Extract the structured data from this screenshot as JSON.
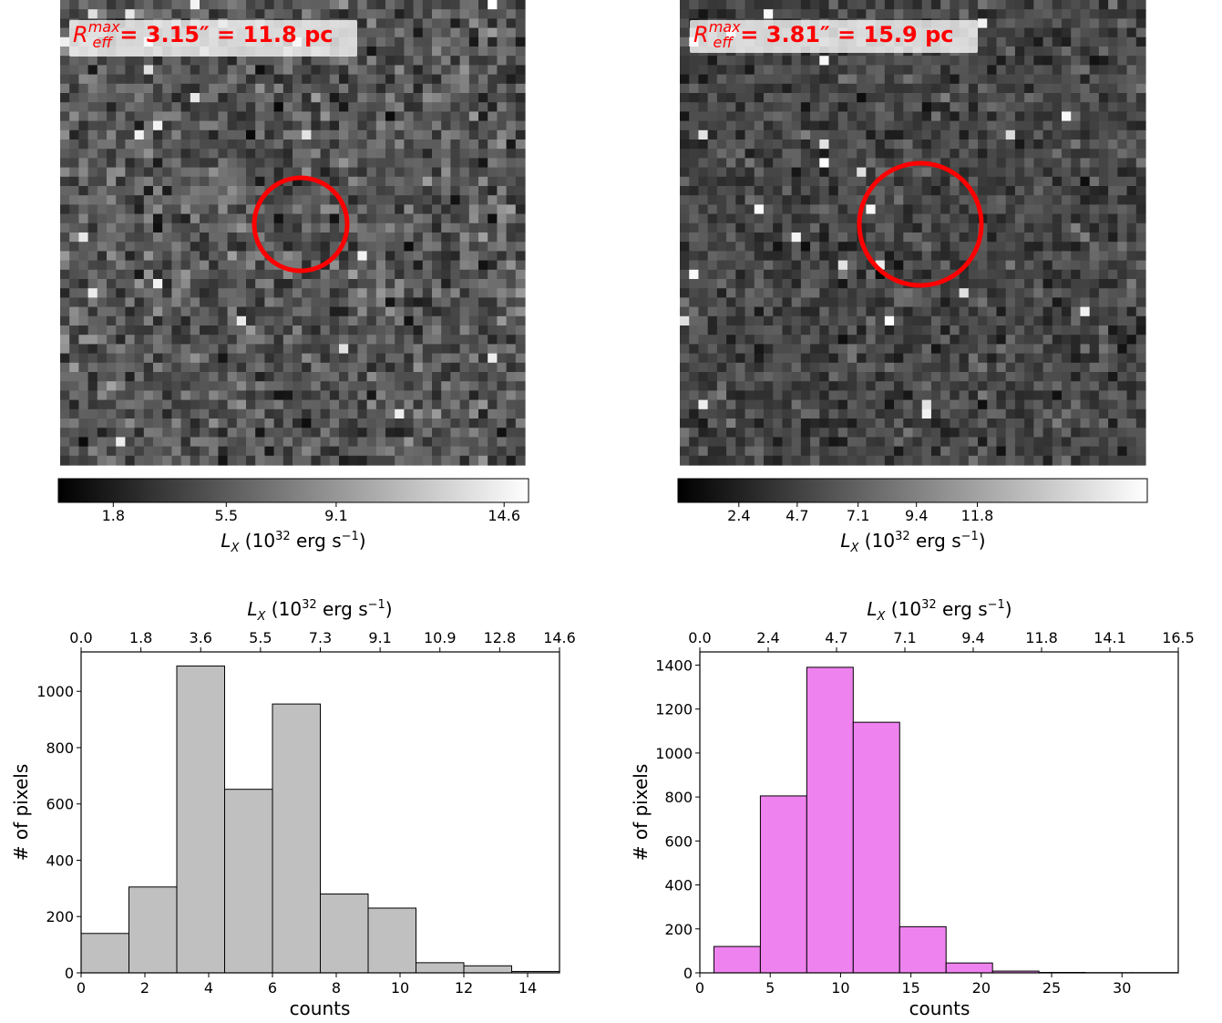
{
  "chart_data": [
    {
      "type": "heatmap",
      "panel": "top-left",
      "annotation": {
        "symbol": "R",
        "superscript": "max",
        "subscript": "eff",
        "text": " = 3.15″ = 11.8 pc"
      },
      "circle_color": "#ff0000",
      "colorbar": {
        "ticks": [
          "1.8",
          "5.5",
          "9.1",
          "14.6"
        ],
        "tick_values": [
          1.8,
          5.5,
          9.1,
          14.6
        ],
        "range": [
          0,
          15.4
        ],
        "label": {
          "base": "L",
          "sub": "X",
          "pre": " (10",
          "sup": "32",
          "mid": " erg s",
          "sup2": "−1",
          "post": ")"
        }
      }
    },
    {
      "type": "heatmap",
      "panel": "top-right",
      "annotation": {
        "symbol": "R",
        "superscript": "max",
        "subscript": "eff",
        "text": " = 3.81″ = 15.9 pc"
      },
      "circle_color": "#ff0000",
      "colorbar": {
        "ticks": [
          "2.4",
          "4.7",
          "7.1",
          "9.4",
          "11.8"
        ],
        "tick_values": [
          2.4,
          4.7,
          7.1,
          9.4,
          11.8
        ],
        "range": [
          0,
          18.5
        ],
        "label": {
          "base": "L",
          "sub": "X",
          "pre": " (10",
          "sup": "32",
          "mid": " erg s",
          "sup2": "−1",
          "post": ")"
        }
      }
    },
    {
      "type": "bar",
      "panel": "bottom-left",
      "fill": "#c0c0c0",
      "bin_edges": [
        0,
        1.5,
        3,
        4.5,
        6,
        7.5,
        9,
        10.5,
        12,
        13.5,
        15
      ],
      "values": [
        140,
        305,
        1090,
        652,
        955,
        280,
        230,
        36,
        25,
        5
      ],
      "xlabel": "counts",
      "ylabel": "# of pixels",
      "xlim": [
        0,
        15
      ],
      "ylim": [
        0,
        1140
      ],
      "xticks": [
        0,
        2,
        4,
        6,
        8,
        10,
        12,
        14
      ],
      "yticks": [
        0,
        200,
        400,
        600,
        800,
        1000
      ],
      "top_axis": {
        "ticks": [
          "0.0",
          "1.8",
          "3.6",
          "5.5",
          "7.3",
          "9.1",
          "10.9",
          "12.8",
          "14.6"
        ],
        "tick_positions": [
          0,
          1.875,
          3.75,
          5.625,
          7.5,
          9.375,
          11.25,
          13.125,
          15
        ],
        "label": {
          "base": "L",
          "sub": "X",
          "pre": " (10",
          "sup": "32",
          "mid": " erg s",
          "sup2": "−1",
          "post": ")"
        }
      }
    },
    {
      "type": "bar",
      "panel": "bottom-right",
      "fill": "#ee82ee",
      "bin_edges": [
        1,
        4.3,
        7.6,
        10.9,
        14.2,
        17.5,
        20.8,
        24.1,
        27.4,
        30.7,
        34
      ],
      "values": [
        120,
        805,
        1390,
        1140,
        210,
        45,
        8,
        2,
        1,
        1
      ],
      "xlabel": "counts",
      "ylabel": "# of pixels",
      "xlim": [
        0,
        34
      ],
      "ylim": [
        0,
        1460
      ],
      "xticks": [
        0,
        5,
        10,
        15,
        20,
        25,
        30
      ],
      "yticks": [
        0,
        200,
        400,
        600,
        800,
        1000,
        1200,
        1400
      ],
      "top_axis": {
        "ticks": [
          "0.0",
          "2.4",
          "4.7",
          "7.1",
          "9.4",
          "11.8",
          "14.1",
          "16.5"
        ],
        "tick_positions": [
          0,
          4.857,
          9.714,
          14.571,
          19.429,
          24.286,
          29.143,
          34
        ],
        "label": {
          "base": "L",
          "sub": "X",
          "pre": " (10",
          "sup": "32",
          "mid": " erg s",
          "sup2": "−1",
          "post": ")"
        }
      }
    }
  ]
}
